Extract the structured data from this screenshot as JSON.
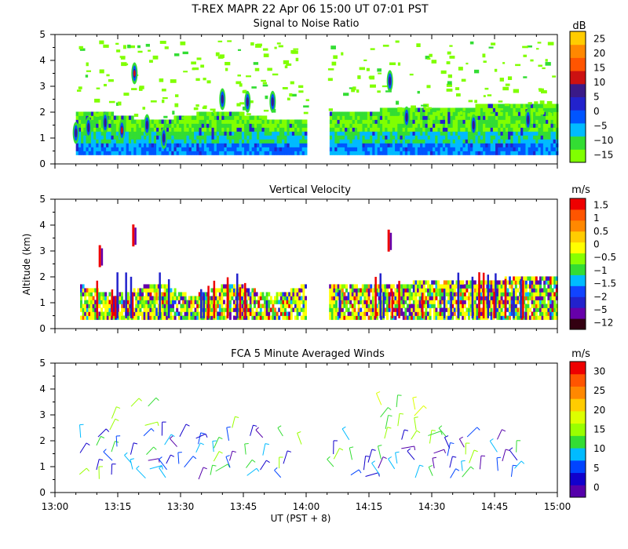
{
  "header": {
    "title": "T-REX   MAPR 22 Apr 06   15:00 UT   07:01   PST"
  },
  "colors": {
    "snr": [
      "#80ff00",
      "#33dd33",
      "#00bbff",
      "#0055ff",
      "#2222cc",
      "#3a1a88",
      "#cc1111",
      "#ff5500",
      "#ff8800",
      "#ffcc00"
    ],
    "vel": [
      "#330011",
      "#6600aa",
      "#2222cc",
      "#1144ff",
      "#00bbff",
      "#33dd33",
      "#88ff00",
      "#ffff00",
      "#ffcc00",
      "#ff8800",
      "#ff5500",
      "#ee0000"
    ],
    "wind": [
      "#5500aa",
      "#1100cc",
      "#0044ff",
      "#00bbff",
      "#33dd33",
      "#99ff00",
      "#ddff00",
      "#ffcc00",
      "#ff8800",
      "#ff5500",
      "#ee0000"
    ]
  },
  "chart_data": [
    {
      "type": "heatmap",
      "title": "Signal to Noise Ratio",
      "units": "dB",
      "ylabel": "",
      "ylim": [
        0,
        5
      ],
      "yticks": [
        "0",
        "1",
        "2",
        "3",
        "4",
        "5"
      ],
      "colorbar_ticks": [
        "25",
        "20",
        "15",
        "10",
        "5",
        "0",
        "−5",
        "−10",
        "−15"
      ],
      "data_extent_altitude_km": [
        0.35,
        1.8
      ],
      "gap_minutes": [
        60,
        65
      ],
      "cells": [
        {
          "t": 5,
          "h": 1.2
        },
        {
          "t": 8,
          "h": 1.4
        },
        {
          "t": 12,
          "h": 1.6
        },
        {
          "t": 16,
          "h": 1.3
        },
        {
          "t": 19,
          "h": 3.5
        },
        {
          "t": 22,
          "h": 1.5
        },
        {
          "t": 26,
          "h": 1.0
        },
        {
          "t": 40,
          "h": 2.5
        },
        {
          "t": 46,
          "h": 2.4
        },
        {
          "t": 52,
          "h": 2.4
        },
        {
          "t": 80,
          "h": 3.2
        },
        {
          "t": 84,
          "h": 1.8
        },
        {
          "t": 100,
          "h": 1.5
        },
        {
          "t": 113,
          "h": 1.7
        }
      ]
    },
    {
      "type": "heatmap",
      "title": "Vertical Velocity",
      "units": "m/s",
      "ylabel": "Altitude (km)",
      "ylim": [
        0,
        5
      ],
      "yticks": [
        "0",
        "1",
        "2",
        "3",
        "4",
        "5"
      ],
      "colorbar_ticks": [
        "1.5",
        "1",
        "0.5",
        "0",
        "−0.5",
        "−1",
        "−1.5",
        "−2",
        "−5",
        "−12"
      ],
      "data_extent_altitude_km": [
        0.35,
        1.7
      ],
      "gap_minutes": [
        60,
        65
      ],
      "plumes": [
        {
          "t": 19,
          "h": 3.6
        },
        {
          "t": 11,
          "h": 2.8
        },
        {
          "t": 80,
          "h": 3.4
        }
      ]
    },
    {
      "type": "scatter",
      "title": "FCA 5 Minute Averaged Winds",
      "units": "m/s",
      "ylabel": "",
      "ylim": [
        0,
        5
      ],
      "yticks": [
        "0",
        "1",
        "2",
        "3",
        "4",
        "5"
      ],
      "colorbar_ticks": [
        "30",
        "25",
        "20",
        "15",
        "10",
        "5",
        "0"
      ],
      "xlabel": "UT  (PST + 8)",
      "xlim_minutes": [
        0,
        120
      ],
      "xticks": [
        "13:00",
        "13:15",
        "13:30",
        "13:45",
        "14:00",
        "14:15",
        "14:30",
        "14:45",
        "15:00"
      ],
      "barb_times": [
        6,
        10,
        14,
        18,
        22,
        26,
        30,
        34,
        38,
        42,
        46,
        50,
        54,
        58,
        66,
        70,
        74,
        78,
        82,
        86,
        90,
        94,
        98,
        102,
        106,
        110
      ],
      "barb_altitudes_km": [
        0.6,
        0.9,
        1.2,
        1.5,
        1.8,
        2.1,
        2.5,
        2.9,
        3.3
      ]
    }
  ]
}
